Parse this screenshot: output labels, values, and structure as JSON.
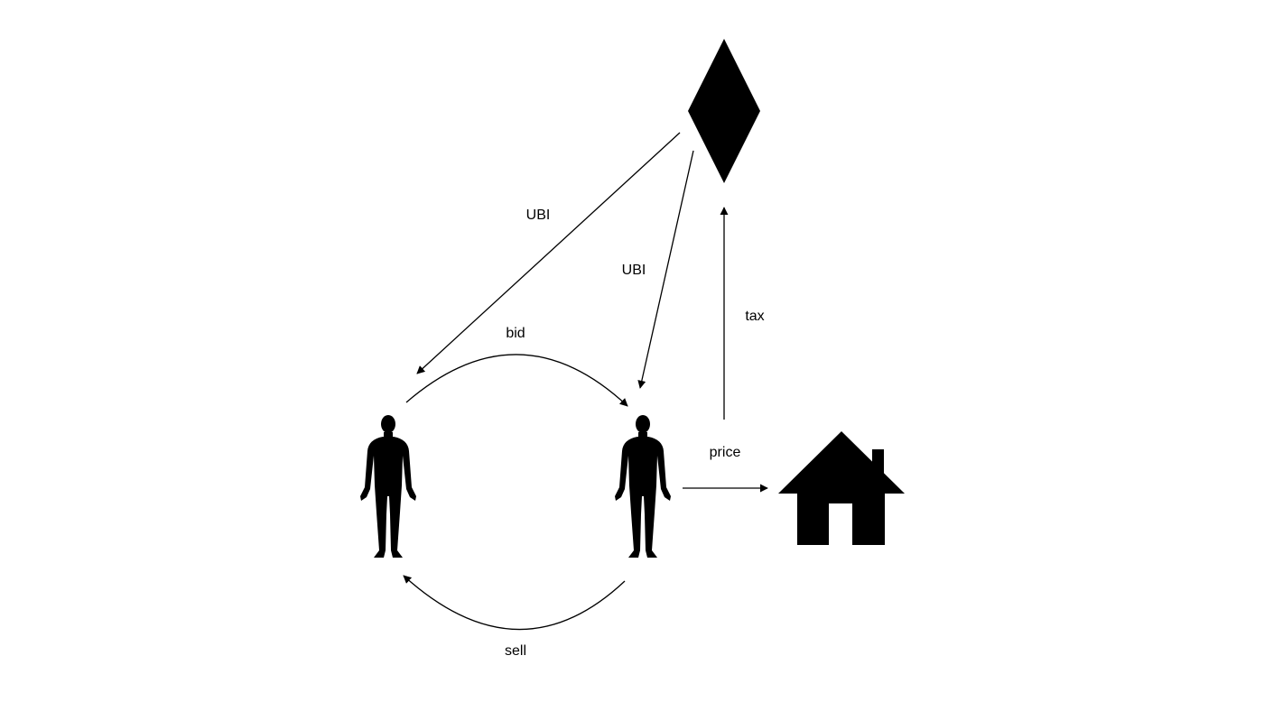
{
  "diagram": {
    "nodes": {
      "state": {
        "icon": "diamond-icon"
      },
      "person_left": {
        "icon": "person-icon"
      },
      "person_right": {
        "icon": "person-icon"
      },
      "house": {
        "icon": "house-icon"
      }
    },
    "edges": {
      "ubi_left": {
        "label": "UBI",
        "from": "state",
        "to": "person_left"
      },
      "ubi_right": {
        "label": "UBI",
        "from": "state",
        "to": "person_right"
      },
      "bid": {
        "label": "bid",
        "from": "person_left",
        "to": "person_right"
      },
      "sell": {
        "label": "sell",
        "from": "person_right",
        "to": "person_left"
      },
      "price": {
        "label": "price",
        "from": "person_right",
        "to": "house"
      },
      "tax": {
        "label": "tax",
        "from": "house",
        "to": "state"
      }
    },
    "colors": {
      "ink": "#000000",
      "background": "#ffffff"
    }
  }
}
